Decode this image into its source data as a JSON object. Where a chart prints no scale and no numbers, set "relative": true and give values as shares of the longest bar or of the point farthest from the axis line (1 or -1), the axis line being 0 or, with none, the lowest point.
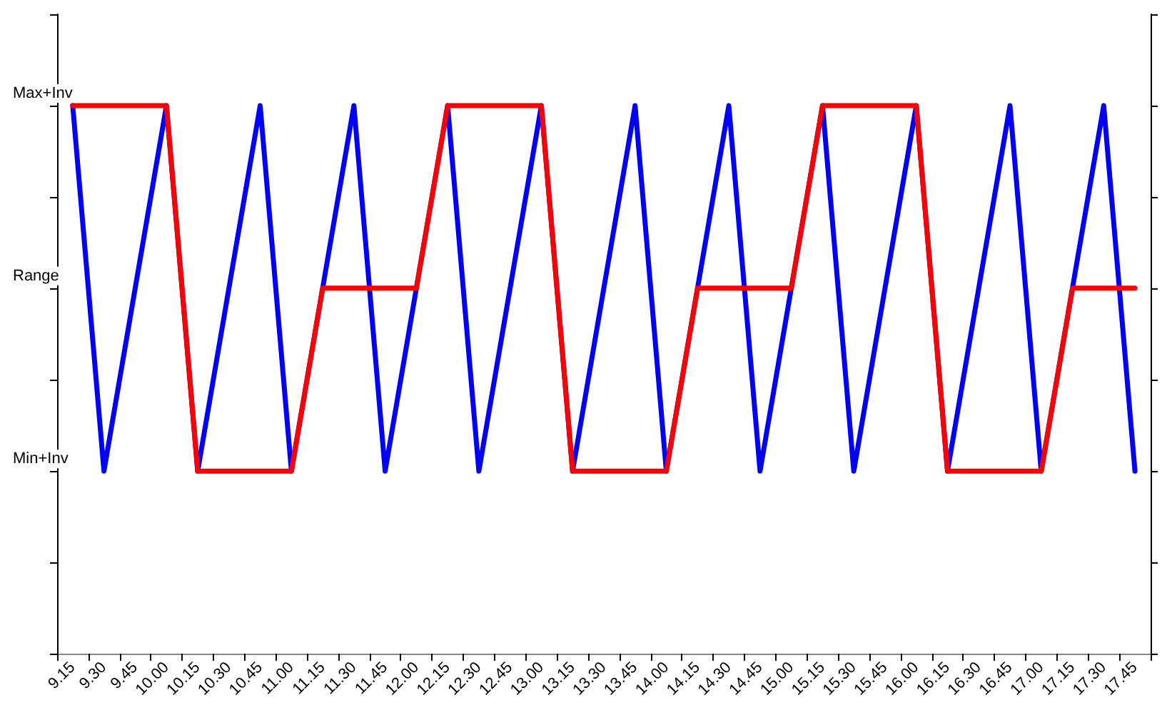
{
  "chart_data": {
    "type": "line",
    "relative": true,
    "categories": [
      "9.15",
      "9.30",
      "9.45",
      "10.00",
      "10.15",
      "10.30",
      "10.45",
      "11.00",
      "11.15",
      "11.30",
      "11.45",
      "12.00",
      "12.15",
      "12.30",
      "12.45",
      "13.00",
      "13.15",
      "13.30",
      "13.45",
      "14.00",
      "14.15",
      "14.30",
      "14.45",
      "15.00",
      "15.15",
      "15.30",
      "15.45",
      "16.00",
      "16.15",
      "16.30",
      "16.45",
      "17.00",
      "17.15",
      "17.30",
      "17.45"
    ],
    "series": [
      {
        "color": "#0000ff",
        "values": [
          1,
          0.333,
          0.667,
          1,
          0.333,
          0.667,
          1,
          0.333,
          0.667,
          1,
          0.333,
          0.667,
          1,
          0.333,
          0.667,
          1,
          0.333,
          0.667,
          1,
          0.333,
          0.667,
          1,
          0.333,
          0.667,
          1,
          0.333,
          0.667,
          1,
          0.333,
          0.667,
          1,
          0.333,
          0.667,
          1,
          0.333
        ]
      },
      {
        "color": "#ff0000",
        "values": [
          1,
          1,
          1,
          1,
          0.333,
          0.333,
          0.333,
          0.333,
          0.667,
          0.667,
          0.667,
          0.667,
          1,
          1,
          1,
          1,
          0.333,
          0.333,
          0.333,
          0.333,
          0.667,
          0.667,
          0.667,
          0.667,
          1,
          1,
          1,
          1,
          0.333,
          0.333,
          0.333,
          0.333,
          0.667,
          0.667,
          0.667
        ]
      }
    ],
    "annotations": [
      "Max+Inv",
      "Range",
      "Min+Inv"
    ],
    "marker": "none",
    "line_style": "solid"
  }
}
